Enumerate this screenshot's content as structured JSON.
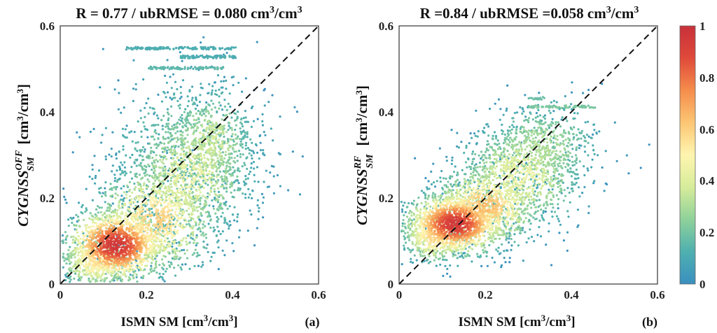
{
  "chart_data": [
    {
      "type": "scatter",
      "panel_label": "(a)",
      "title_parts": {
        "left": "R = 0.77 / ubRMSE = 0.080 cm",
        "sup": "3",
        "mid": "/cm",
        "sup2": "3"
      },
      "xlabel_parts": {
        "left": "ISMN SM [cm",
        "sup": "3",
        "mid": "/cm",
        "sup2": "3",
        "right": "]"
      },
      "ylabel_parts": {
        "main": "CYGNSS",
        "sup": "OFF",
        "sub": "SM",
        "unit": "[cm",
        "usup": "3",
        "umid": "/cm",
        "usup2": "3",
        "uend": "]"
      },
      "xlim": [
        0,
        0.6
      ],
      "ylim": [
        0,
        0.6
      ],
      "xticks": [
        "0",
        "0.2",
        "0.4",
        "0.6"
      ],
      "yticks": [
        "0",
        "0.2",
        "0.4",
        "0.6"
      ],
      "one_to_one_line": true,
      "color_by": "point density",
      "density_clusters": [
        {
          "x": 0.13,
          "y": 0.09,
          "sx": 0.055,
          "sy": 0.04,
          "n": 1400,
          "d": 0.95
        },
        {
          "x": 0.22,
          "y": 0.15,
          "sx": 0.07,
          "sy": 0.06,
          "n": 900,
          "d": 0.6
        },
        {
          "x": 0.3,
          "y": 0.25,
          "sx": 0.07,
          "sy": 0.07,
          "n": 700,
          "d": 0.45
        },
        {
          "x": 0.35,
          "y": 0.33,
          "sx": 0.05,
          "sy": 0.06,
          "n": 450,
          "d": 0.38
        },
        {
          "x": 0.3,
          "y": 0.3,
          "sx": 0.1,
          "sy": 0.1,
          "n": 600,
          "d": 0.25
        },
        {
          "x": 0.08,
          "y": 0.05,
          "sx": 0.04,
          "sy": 0.03,
          "n": 400,
          "d": 0.55
        }
      ],
      "saturation_bands": [
        {
          "y": 0.548,
          "x": [
            0.15,
            0.41
          ],
          "n": 140,
          "d": 0.08
        },
        {
          "y": 0.528,
          "x": [
            0.28,
            0.41
          ],
          "n": 80,
          "d": 0.08
        },
        {
          "y": 0.502,
          "x": [
            0.2,
            0.38
          ],
          "n": 90,
          "d": 0.12
        }
      ]
    },
    {
      "type": "scatter",
      "panel_label": "(b)",
      "title_parts": {
        "left": "R =0.84 / ubRMSE =0.058 cm",
        "sup": "3",
        "mid": "/cm",
        "sup2": "3"
      },
      "xlabel_parts": {
        "left": "ISMN SM [cm",
        "sup": "3",
        "mid": "/cm",
        "sup2": "3",
        "right": "]"
      },
      "ylabel_parts": {
        "main": "CYGNSS",
        "sup": "RF",
        "sub": "SM",
        "unit": "[cm",
        "usup": "3",
        "umid": "/cm",
        "usup2": "3",
        "uend": "]"
      },
      "xlim": [
        0,
        0.6
      ],
      "ylim": [
        0,
        0.6
      ],
      "xticks": [
        "0",
        "0.2",
        "0.4",
        "0.6"
      ],
      "yticks": [
        "0",
        "0.2",
        "0.4",
        "0.6"
      ],
      "one_to_one_line": true,
      "color_by": "point density",
      "density_clusters": [
        {
          "x": 0.13,
          "y": 0.14,
          "sx": 0.055,
          "sy": 0.035,
          "n": 1400,
          "d": 0.95
        },
        {
          "x": 0.2,
          "y": 0.18,
          "sx": 0.06,
          "sy": 0.045,
          "n": 800,
          "d": 0.65
        },
        {
          "x": 0.28,
          "y": 0.25,
          "sx": 0.07,
          "sy": 0.06,
          "n": 800,
          "d": 0.45
        },
        {
          "x": 0.33,
          "y": 0.32,
          "sx": 0.07,
          "sy": 0.05,
          "n": 500,
          "d": 0.32
        },
        {
          "x": 0.08,
          "y": 0.11,
          "sx": 0.035,
          "sy": 0.03,
          "n": 350,
          "d": 0.6
        }
      ],
      "saturation_bands": [
        {
          "y": 0.412,
          "x": [
            0.3,
            0.46
          ],
          "n": 70,
          "d": 0.18
        },
        {
          "y": 0.432,
          "x": [
            0.3,
            0.34
          ],
          "n": 20,
          "d": 0.15
        }
      ]
    }
  ],
  "colorbar": {
    "min": 0,
    "max": 1,
    "ticks": [
      "0",
      "0.2",
      "0.4",
      "0.6",
      "0.8",
      "1"
    ],
    "colormap": [
      "#3a8fbf",
      "#4fb0b0",
      "#8fd19a",
      "#d6ec9a",
      "#fff5b0",
      "#fcc674",
      "#f58d4c",
      "#e04a3a",
      "#c8303a"
    ]
  }
}
